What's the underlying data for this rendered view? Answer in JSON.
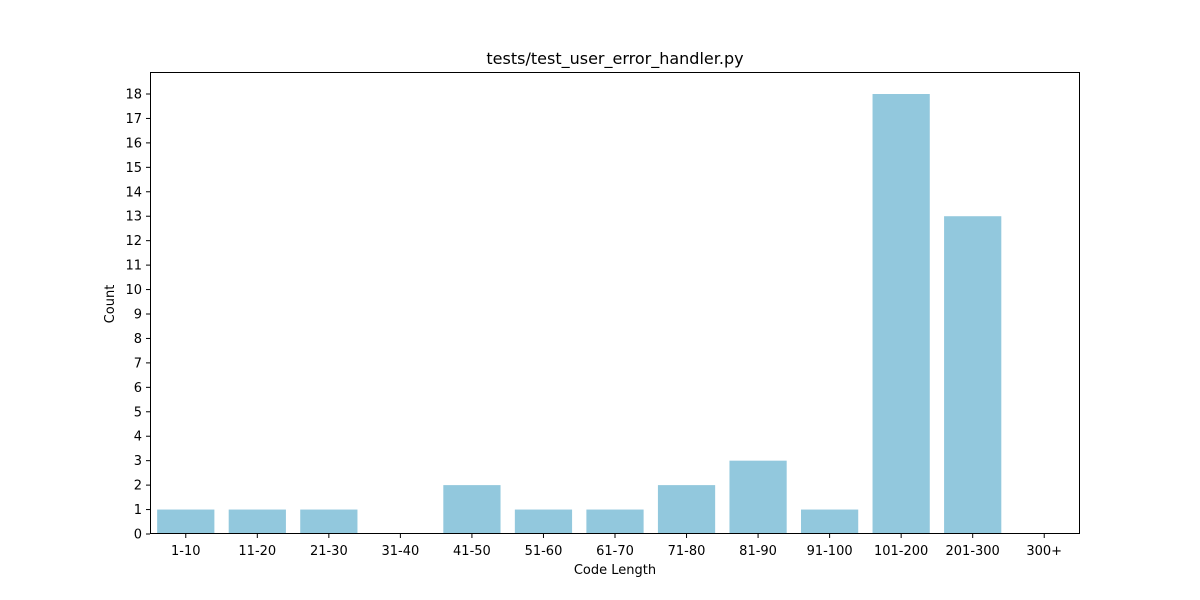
{
  "chart_data": {
    "type": "bar",
    "title": "tests/test_user_error_handler.py",
    "xlabel": "Code Length",
    "ylabel": "Count",
    "categories": [
      "1-10",
      "11-20",
      "21-30",
      "31-40",
      "41-50",
      "51-60",
      "61-70",
      "71-80",
      "81-90",
      "91-100",
      "101-200",
      "201-300",
      "300+"
    ],
    "values": [
      1,
      1,
      1,
      0,
      2,
      1,
      1,
      2,
      3,
      1,
      18,
      13,
      0
    ],
    "ylim": [
      0,
      18.9
    ],
    "yticks": [
      0,
      1,
      2,
      3,
      4,
      5,
      6,
      7,
      8,
      9,
      10,
      11,
      12,
      13,
      14,
      15,
      16,
      17,
      18
    ],
    "bar_color": "#92c8dd",
    "grid": false,
    "legend": false
  }
}
